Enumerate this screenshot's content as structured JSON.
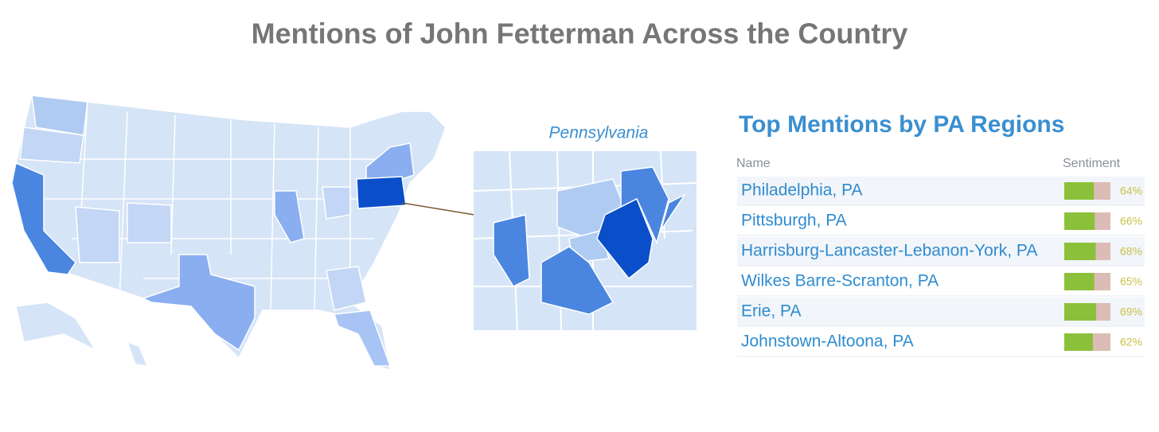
{
  "title": "Mentions of John Fetterman Across the Country",
  "inset_label": "Pennsylvania",
  "table": {
    "title": "Top Mentions by PA Regions",
    "headers": [
      "Name",
      "Sentiment"
    ],
    "rows": [
      {
        "name": "Philadelphia, PA",
        "sentiment": 64,
        "sentiment_label": "64%"
      },
      {
        "name": "Pittsburgh, PA",
        "sentiment": 66,
        "sentiment_label": "66%"
      },
      {
        "name": "Harrisburg-Lancaster-Lebanon-York, PA",
        "sentiment": 68,
        "sentiment_label": "68%"
      },
      {
        "name": "Wilkes Barre-Scranton, PA",
        "sentiment": 65,
        "sentiment_label": "65%"
      },
      {
        "name": "Erie, PA",
        "sentiment": 69,
        "sentiment_label": "69%"
      },
      {
        "name": "Johnstown-Altoona, PA",
        "sentiment": 62,
        "sentiment_label": "62%"
      }
    ]
  }
}
